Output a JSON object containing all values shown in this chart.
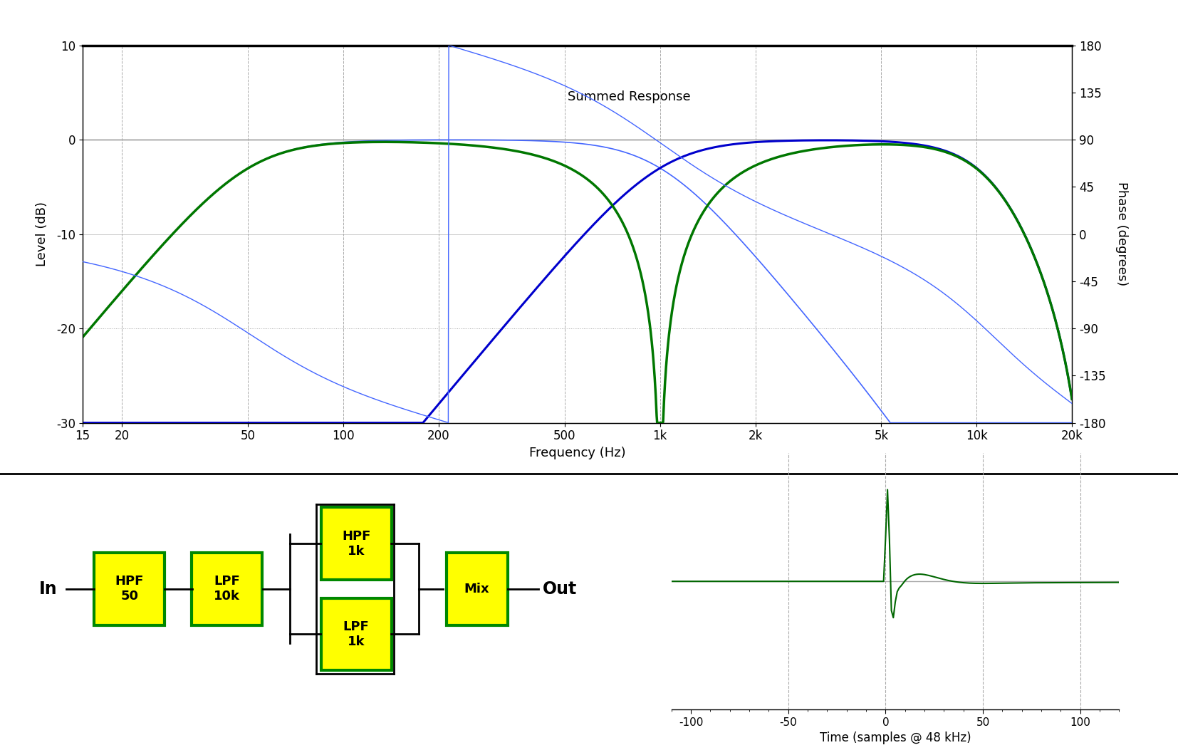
{
  "background_color": "#ffffff",
  "freq_plot": {
    "xlim_log": [
      15,
      20000
    ],
    "ylim_db": [
      -30,
      10
    ],
    "ylim_phase": [
      -180,
      180
    ],
    "yticks_db": [
      -30,
      -20,
      -10,
      0,
      10
    ],
    "yticks_phase": [
      -180,
      -135,
      -90,
      -45,
      0,
      45,
      90,
      135,
      180
    ],
    "xtick_labels": [
      "15",
      "20",
      "50",
      "100",
      "200",
      "500",
      "1k",
      "2k",
      "5k",
      "10k",
      "20k"
    ],
    "xtick_values": [
      15,
      20,
      50,
      100,
      200,
      500,
      1000,
      2000,
      5000,
      10000,
      20000
    ],
    "xlabel": "Frequency (Hz)",
    "ylabel_left": "Level (dB)",
    "ylabel_right": "Phase (degrees)",
    "summed_label": "Summed Response",
    "hpf_fc": 50,
    "lpf_fc": 10000,
    "xover_fc": 1000,
    "green_color": "#007700",
    "blue_color": "#0000cc",
    "blue_thin_color": "#4466ff",
    "grid_color": "#aaaaaa",
    "grid_style": "--"
  },
  "impulse_plot": {
    "xlim": [
      -110,
      120
    ],
    "xlabel": "Time (samples @ 48 kHz)",
    "green_color": "#006600",
    "gray_color": "#aaaaaa",
    "black_color": "#000000",
    "xticks": [
      -100,
      -50,
      0,
      50,
      100
    ],
    "vline_positions": [
      -50,
      0,
      50,
      100
    ]
  },
  "signal_chain": {
    "box_color": "#ffff00",
    "box_edge_color": "#008800",
    "text_color": "#000000",
    "line_color": "#000000"
  }
}
